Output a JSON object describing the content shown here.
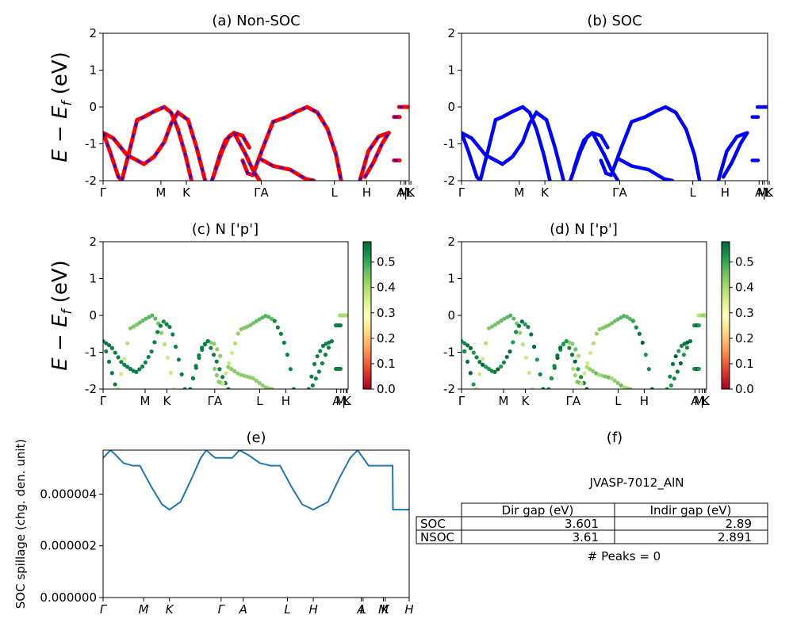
{
  "figure": {
    "row_label_band": "E − E_f (eV)",
    "ylabel_base": "E − E",
    "ylabel_sub": "f",
    "ylabel_tail": " (eV)"
  },
  "colors": {
    "non_soc_a": "#ff0000",
    "non_soc_b": "#0000ff",
    "soc": "#0000ff",
    "spillage": "#1f77b4"
  },
  "chart_data": [
    {
      "id": "a",
      "type": "line",
      "title": "(a) Non-SOC",
      "ylabel": "E − E_f (eV)",
      "ylim": [
        -2,
        2
      ],
      "yticks": [
        -2,
        -1,
        0,
        1,
        2
      ],
      "kpath_ticks": [
        "Γ",
        "M",
        "K",
        "ΓA",
        "L",
        "H",
        "A",
        "M",
        "|",
        "L",
        "K"
      ],
      "style": "red solid with blue dashed overlay",
      "series": [
        {
          "x": [
            0,
            0.3,
            0.7,
            1.0
          ],
          "y": [
            -0.7,
            -0.85,
            -1.3,
            -1.45
          ]
        },
        {
          "x": [
            0,
            0.2,
            0.45,
            0.55
          ],
          "y": [
            -0.7,
            -1.2,
            -1.9,
            -2.0
          ]
        },
        {
          "x": [
            0.55,
            0.8,
            1.0,
            1.2,
            1.5,
            1.8,
            2.0,
            2.2,
            2.42,
            2.6
          ],
          "y": [
            -2.0,
            -1.1,
            -0.35,
            -0.27,
            -0.12,
            0.0,
            -0.15,
            -0.6,
            -1.3,
            -2.0
          ]
        },
        {
          "x": [
            1.0,
            1.2,
            1.5,
            1.8,
            2.0,
            2.2,
            2.5,
            2.75,
            3.0
          ],
          "y": [
            -1.45,
            -1.55,
            -1.35,
            -0.95,
            -0.45,
            -0.15,
            -0.35,
            -1.1,
            -2.0
          ]
        },
        {
          "x": [
            3.2,
            3.5,
            3.7,
            3.85
          ],
          "y": [
            -2.0,
            -1.2,
            -0.8,
            -0.7
          ]
        },
        {
          "x": [
            3.85,
            4.1,
            4.3
          ],
          "y": [
            -0.7,
            -0.78,
            -1.1
          ]
        },
        {
          "x": [
            3.3,
            3.45,
            3.6,
            3.85
          ],
          "y": [
            -1.7,
            -1.25,
            -0.9,
            -0.7
          ]
        },
        {
          "x": [
            3.85,
            4.2,
            4.4,
            4.6
          ],
          "y": [
            -0.7,
            -1.3,
            -1.7,
            -2.0
          ]
        },
        {
          "x": [
            4.1,
            4.25,
            4.4
          ],
          "y": [
            -1.45,
            -1.8,
            -1.85
          ]
        },
        {
          "x": [
            4.4,
            4.7,
            5.0,
            5.4,
            5.7,
            6.0,
            6.3
          ],
          "y": [
            -1.85,
            -1.1,
            -0.4,
            -0.27,
            -0.12,
            0.0,
            -0.15
          ]
        },
        {
          "x": [
            6.3,
            6.6,
            6.85,
            7.0
          ],
          "y": [
            -0.15,
            -0.6,
            -1.3,
            -2.0
          ]
        },
        {
          "x": [
            4.6,
            5.0,
            5.5,
            5.95,
            6.2
          ],
          "y": [
            -1.4,
            -1.6,
            -1.7,
            -1.95,
            -2.0
          ]
        },
        {
          "x": [
            7.55,
            7.8,
            8.1,
            8.4
          ],
          "y": [
            -2.0,
            -1.2,
            -0.8,
            -0.7
          ]
        },
        {
          "x": [
            7.7,
            7.95,
            8.2,
            8.4
          ],
          "y": [
            -1.9,
            -1.5,
            -1.0,
            -0.7
          ]
        },
        {
          "x": [
            8.7,
            9.0
          ],
          "y": [
            0.0,
            0.0
          ]
        },
        {
          "x": [
            8.55,
            8.72
          ],
          "y": [
            -0.27,
            -0.27
          ]
        },
        {
          "x": [
            8.55,
            8.72
          ],
          "y": [
            -1.45,
            -1.45
          ]
        }
      ]
    },
    {
      "id": "b",
      "type": "line",
      "title": "(b) SOC",
      "ylim": [
        -2,
        2
      ],
      "yticks": [
        -2,
        -1,
        0,
        1,
        2
      ],
      "kpath_ticks": [
        "Γ",
        "M",
        "K",
        "ΓA",
        "L",
        "H",
        "A",
        "M",
        "|",
        "L",
        "K"
      ],
      "series_ref": "same band structure as (a), blue solid"
    },
    {
      "id": "c",
      "type": "scatter",
      "title": "(c)  N ['p']",
      "ylabel": "E − E_f (eV)",
      "ylim": [
        -2,
        2
      ],
      "yticks": [
        -2,
        -1,
        0,
        1,
        2
      ],
      "kpath_ticks": [
        "Γ",
        "M",
        "K",
        "ΓA",
        "L",
        "H",
        "A",
        "M",
        "|",
        "L",
        "K"
      ],
      "colorbar": {
        "cmap": "RdYlGn",
        "min": 0.0,
        "max": 0.58,
        "ticks": [
          "0.0",
          "0.1",
          "0.2",
          "0.3",
          "0.4",
          "0.5"
        ]
      }
    },
    {
      "id": "d",
      "type": "scatter",
      "title": "(d) N ['p']",
      "ylim": [
        -2,
        2
      ],
      "yticks": [
        -2,
        -1,
        0,
        1,
        2
      ],
      "kpath_ticks": [
        "Γ",
        "M",
        "K",
        "ΓA",
        "L",
        "H",
        "A",
        "M",
        "|",
        "L",
        "K"
      ],
      "colorbar": {
        "cmap": "RdYlGn",
        "min": 0.0,
        "max": 0.58,
        "ticks": [
          "0.0",
          "0.1",
          "0.2",
          "0.3",
          "0.4",
          "0.5"
        ]
      }
    },
    {
      "id": "e",
      "type": "line",
      "title": "(e)",
      "ylabel": "SOC spillage (chg. den. unit)",
      "ylim": [
        0,
        5.7e-06
      ],
      "yticks": [
        "0.000000",
        "0.000002",
        "0.000004"
      ],
      "ytick_values": [
        0,
        2e-06,
        4e-06
      ],
      "kpath_ticks": [
        "Γ",
        "M",
        "K",
        "Γ",
        "A",
        "L",
        "H",
        "A",
        "L",
        "M",
        "K",
        "H"
      ],
      "x": [
        0,
        0.2,
        0.35,
        0.55,
        0.8,
        1.0,
        1.3,
        1.6,
        1.8,
        2.1,
        2.4,
        2.65,
        2.8,
        2.95,
        3.05,
        3.2,
        3.5,
        3.7,
        3.95,
        4.25,
        4.55,
        4.8,
        5.1,
        5.4,
        5.7,
        6.1,
        6.4,
        6.7,
        6.9,
        7.0,
        7.2,
        7.6,
        7.85,
        7.86,
        8.3
      ],
      "y": [
        5.4e-06,
        5.7e-06,
        5.5e-06,
        5.2e-06,
        5.1e-06,
        5.1e-06,
        4.3e-06,
        3.6e-06,
        3.4e-06,
        3.7e-06,
        4.6e-06,
        5.4e-06,
        5.7e-06,
        5.5e-06,
        5.4e-06,
        5.4e-06,
        5.4e-06,
        5.7e-06,
        5.5e-06,
        5.2e-06,
        5.1e-06,
        5.1e-06,
        4.3e-06,
        3.6e-06,
        3.4e-06,
        3.7e-06,
        4.6e-06,
        5.4e-06,
        5.7e-06,
        5.5e-06,
        5.1e-06,
        5.1e-06,
        5.1e-06,
        3.4e-06,
        3.4e-06
      ]
    },
    {
      "id": "f",
      "type": "table",
      "title": "(f)",
      "label": "JVASP-7012_AlN",
      "columns": [
        "Dir gap (eV)",
        "Indir gap (eV)"
      ],
      "rows": [
        {
          "name": "SOC",
          "cells": [
            "3.601",
            "2.89"
          ]
        },
        {
          "name": "NSOC",
          "cells": [
            "3.61",
            "2.891"
          ]
        }
      ],
      "footer": "# Peaks = 0"
    }
  ]
}
